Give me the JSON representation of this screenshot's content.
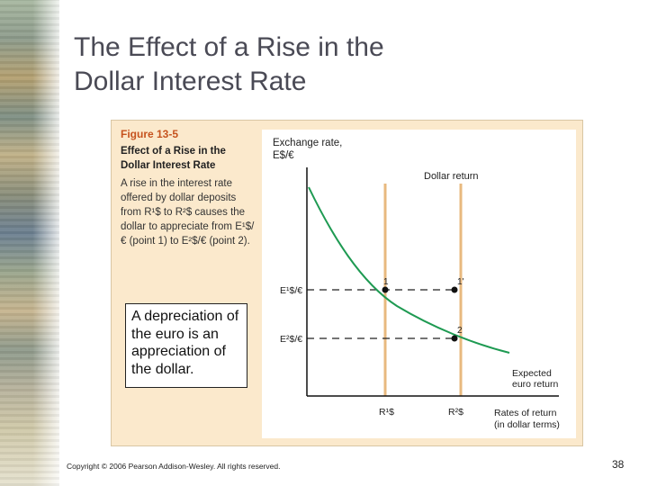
{
  "slide": {
    "title_line1": "The Effect of a Rise in the",
    "title_line2": "Dollar Interest Rate",
    "copyright": "Copyright © 2006 Pearson Addison-Wesley. All rights reserved.",
    "page_number": "38"
  },
  "figure": {
    "number": "Figure 13-5",
    "title": "Effect of a Rise in the Dollar Interest Rate",
    "body": "A rise in the interest rate offered by dollar deposits from R¹$ to R²$ causes the dollar to appreciate from E¹$/€ (point 1) to E²$/€ (point 2).",
    "callout": "A depreciation of the euro is an appreciation of the dollar."
  },
  "graph": {
    "y_axis_label_line1": "Exchange rate,",
    "y_axis_label_line2": "E$/€",
    "x_axis_label_line1": "Rates of return",
    "x_axis_label_line2": "(in dollar terms)",
    "dollar_return_label": "Dollar return",
    "expected_return_label_line1": "Expected",
    "expected_return_label_line2": "euro return",
    "e1_label": "E¹$/€",
    "e2_label": "E²$/€",
    "r1_label": "R¹$",
    "r2_label": "R²$",
    "point1_label": "1",
    "point1prime_label": "1'",
    "point2_label": "2",
    "colors": {
      "dollar_return_line": "#e8b97f",
      "euro_return_curve": "#1e9a52",
      "dashed": "#222222",
      "axes": "#111111"
    }
  }
}
